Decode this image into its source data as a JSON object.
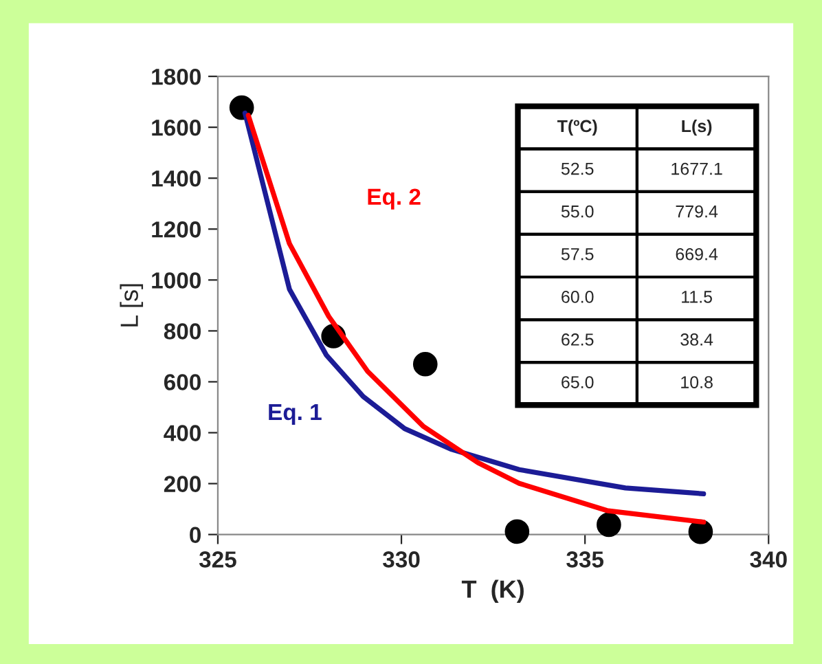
{
  "chart_data": {
    "type": "line",
    "xlabel": "T  (K)",
    "ylabel": "L [s]",
    "xlim": [
      325,
      340
    ],
    "xticks": [
      325,
      330,
      335,
      340
    ],
    "ylim": [
      0,
      1800
    ],
    "yticks": [
      0,
      200,
      400,
      600,
      800,
      1000,
      1200,
      1400,
      1600,
      1800
    ],
    "annotations": [
      "T(ºC)",
      "L(s)",
      "52.5",
      "1677.1",
      "55.0",
      "779.4",
      "57.5",
      "669.4",
      "60.0",
      "11.5",
      "62.5",
      "38.4",
      "65.0",
      "10.8"
    ],
    "series": [
      {
        "name": "Eq. 1",
        "color": "#1c1c96",
        "x": [
          325.74,
          326.95,
          327.96,
          328.96,
          330.09,
          331.34,
          333.21,
          336.1,
          338.23
        ],
        "values": [
          1656,
          964,
          704,
          542,
          416,
          336,
          255,
          183,
          160
        ]
      },
      {
        "name": "Eq. 2",
        "color": "#ff0000",
        "x": [
          325.83,
          326.95,
          328.02,
          329.08,
          330.59,
          332.09,
          333.21,
          335.6,
          338.23
        ],
        "values": [
          1647,
          1143,
          857,
          641,
          426,
          282,
          201,
          94,
          49
        ]
      },
      {
        "type": "scatter",
        "marker": "circle",
        "color": "#000000",
        "x": [
          325.65,
          328.15,
          330.65,
          333.15,
          335.65,
          338.15
        ],
        "values": [
          1677.1,
          779.4,
          669.4,
          11.5,
          38.4,
          10.8
        ]
      }
    ]
  }
}
